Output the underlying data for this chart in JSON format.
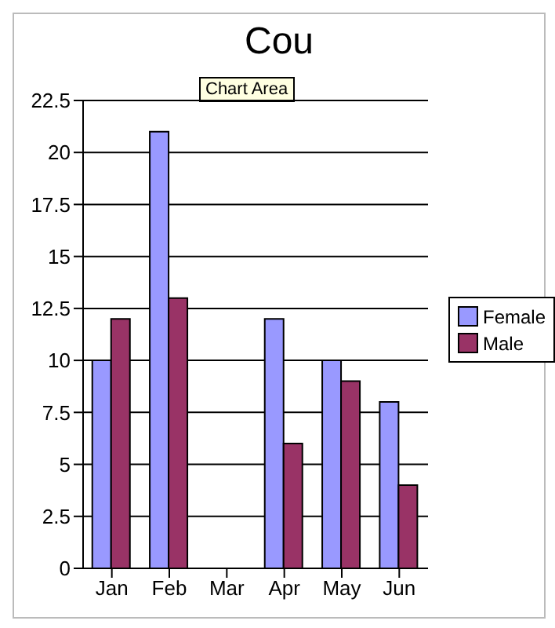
{
  "chart_data": {
    "type": "bar",
    "title": "Cou",
    "annotations": [
      "Chart Area"
    ],
    "categories": [
      "Jan",
      "Feb",
      "Mar",
      "Apr",
      "May",
      "Jun"
    ],
    "series": [
      {
        "name": "Female",
        "color": "#9999ff",
        "values": [
          10,
          21,
          null,
          12,
          10,
          8
        ]
      },
      {
        "name": "Male",
        "color": "#993366",
        "values": [
          12,
          13,
          null,
          6,
          9,
          4
        ]
      }
    ],
    "ylim": [
      0,
      22.5
    ],
    "yticks": [
      0,
      2.5,
      5,
      7.5,
      10,
      12.5,
      15,
      17.5,
      20,
      22.5
    ],
    "grid": "y",
    "legend": "right"
  }
}
